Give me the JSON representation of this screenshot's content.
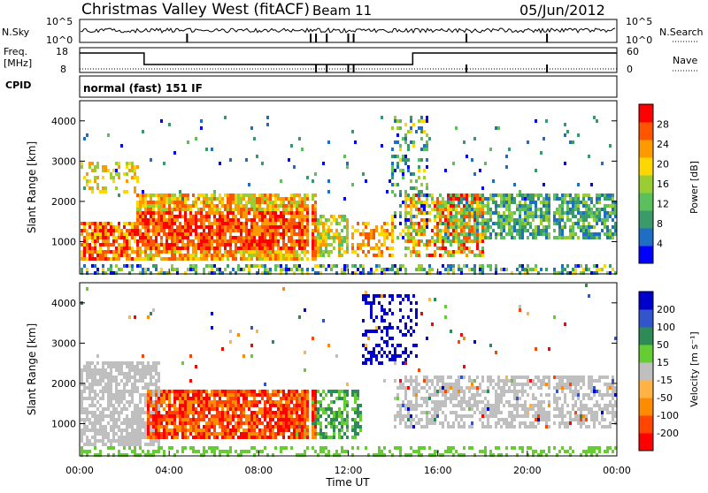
{
  "header": {
    "radar_name": "Christmas Valley West (fitACF)",
    "beam": "Beam 11",
    "date": "05/Jun/2012"
  },
  "nsky_panel": {
    "left_label": "N.Sky",
    "right_label": "N.Search",
    "left_ticks": [
      "10^5",
      "10^0"
    ],
    "right_ticks": [
      "10^5",
      "10^0"
    ]
  },
  "freq_panel": {
    "left_label_line1": "Freq.",
    "left_label_line2": "[MHz]",
    "right_label": "Nave",
    "left_ticks": [
      "18",
      "8"
    ],
    "right_ticks": [
      "60",
      "0"
    ]
  },
  "cpid": {
    "label": "CPID",
    "value": "normal (fast) 151 IF"
  },
  "colors": {
    "power_scale": [
      "#0000ff",
      "#1e6fc4",
      "#3a9a6a",
      "#5bbf5b",
      "#9acd32",
      "#ffd700",
      "#ff9900",
      "#ff5500",
      "#ff0000"
    ],
    "velocity_scale": [
      "#0000cc",
      "#3355cc",
      "#2e8b57",
      "#66cc33",
      "#bfbfbf",
      "#ffb347",
      "#ff8c00",
      "#ff4500",
      "#ff0000"
    ],
    "ground_scatter": "#bfbfbf"
  },
  "chart_data": [
    {
      "type": "heatmap",
      "name": "power-panel",
      "ylabel": "Slant Range [km]",
      "yticks": [
        "1000",
        "2000",
        "3000",
        "4000"
      ],
      "ylim": [
        200,
        4500
      ],
      "xlim": [
        "00:00",
        "24:00"
      ],
      "colorbar": {
        "label": "Power [dB]",
        "ticks": [
          "4",
          "8",
          "12",
          "16",
          "20",
          "24",
          "28"
        ],
        "range": [
          0,
          32
        ]
      }
    },
    {
      "type": "heatmap",
      "name": "velocity-panel",
      "ylabel": "Slant Range [km]",
      "yticks": [
        "1000",
        "2000",
        "3000",
        "4000"
      ],
      "ylim": [
        200,
        4500
      ],
      "xlim": [
        "00:00",
        "24:00"
      ],
      "colorbar": {
        "label": "Velocity [m s⁻¹]",
        "ticks": [
          "200",
          "100",
          "50",
          "15",
          "-15",
          "-50",
          "-100",
          "-200"
        ]
      }
    }
  ],
  "xaxis": {
    "ticks": [
      "00:00",
      "04:00",
      "08:00",
      "12:00",
      "16:00",
      "20:00",
      "00:00"
    ],
    "label": "Time UT"
  }
}
